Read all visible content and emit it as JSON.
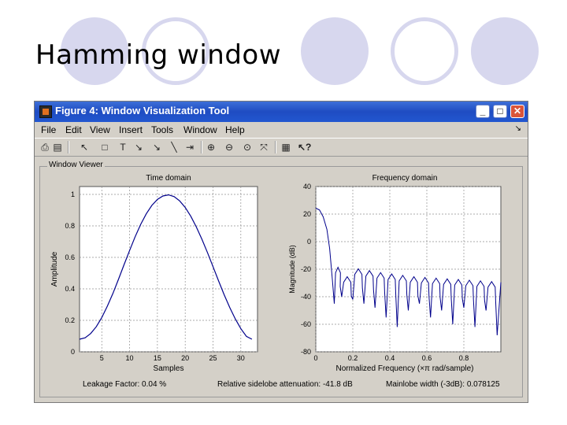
{
  "slide": {
    "title": "Hamming window"
  },
  "window": {
    "title": "Figure 4: Window Visualization Tool",
    "controls": [
      "_",
      "□",
      "✕"
    ]
  },
  "menu": [
    "File",
    "Edit",
    "View",
    "Insert",
    "Tools",
    "Window",
    "Help"
  ],
  "toolbar_icons": [
    "print-icon",
    "print-preview-icon",
    "select-arrow-icon",
    "rectangle-icon",
    "text-icon",
    "arrow-icon",
    "arrow-diag-icon",
    "line-icon",
    "pin-icon",
    "zoom-in-icon",
    "zoom-out-icon",
    "zoom-icon",
    "fit-icon",
    "legend-icon",
    "whats-this-icon"
  ],
  "panel": {
    "label": "Window Viewer"
  },
  "status": {
    "leakage": "Leakage Factor: 0.04 %",
    "sidelobe": "Relative sidelobe attenuation: -41.8 dB",
    "mainlobe": "Mainlobe width (-3dB): 0.078125"
  },
  "colors": {
    "line": "#00008b",
    "axes_bg": "#ffffff",
    "grid": "#909090",
    "panel_bg": "#d4d0c8",
    "deco": "#d7d7ee"
  },
  "chart_data": [
    {
      "type": "line",
      "title": "Time domain",
      "xlabel": "Samples",
      "ylabel": "Amplitude",
      "xlim": [
        1,
        33
      ],
      "ylim": [
        0,
        1.05
      ],
      "xticks": [
        5,
        10,
        15,
        20,
        25,
        30
      ],
      "yticks": [
        0,
        0.2,
        0.4,
        0.6,
        0.8,
        1
      ],
      "ytick_labels": [
        "0",
        "0.2",
        "0.4",
        "0.6",
        "0.8",
        "1"
      ],
      "grid": true,
      "series": [
        {
          "x": [
            1,
            2,
            3,
            4,
            5,
            6,
            7,
            8,
            9,
            10,
            11,
            12,
            13,
            14,
            15,
            16,
            17,
            18,
            19,
            20,
            21,
            22,
            23,
            24,
            25,
            26,
            27,
            28,
            29,
            30,
            31,
            32
          ],
          "y": [
            0.08,
            0.089,
            0.116,
            0.159,
            0.218,
            0.29,
            0.371,
            0.46,
            0.553,
            0.644,
            0.731,
            0.81,
            0.877,
            0.93,
            0.968,
            0.99,
            0.997,
            0.986,
            0.959,
            0.917,
            0.861,
            0.793,
            0.715,
            0.631,
            0.541,
            0.45,
            0.363,
            0.282,
            0.209,
            0.147,
            0.098,
            0.08
          ]
        }
      ]
    },
    {
      "type": "line",
      "title": "Frequency domain",
      "xlabel": "Normalized Frequency (×π rad/sample)",
      "ylabel": "Magnitude (dB)",
      "xlim": [
        0,
        1
      ],
      "ylim": [
        -80,
        40
      ],
      "xticks": [
        0,
        0.2,
        0.4,
        0.6,
        0.8
      ],
      "xtick_labels": [
        "0",
        "0.2",
        "0.4",
        "0.6",
        "0.8"
      ],
      "yticks": [
        -80,
        -60,
        -40,
        -20,
        0,
        20,
        40
      ],
      "ytick_labels": [
        "-80",
        "-60",
        "-40",
        "-20",
        "0",
        "20",
        "40"
      ],
      "grid": true,
      "mainlobe": [
        [
          0,
          24.3
        ],
        [
          0.02,
          23
        ],
        [
          0.04,
          18
        ],
        [
          0.06,
          9
        ],
        [
          0.075,
          -5
        ],
        [
          0.09,
          -28
        ],
        [
          0.1,
          -45
        ]
      ],
      "sidelobe_nulls": [
        0.14,
        0.2,
        0.26,
        0.32,
        0.38,
        0.44,
        0.5,
        0.56,
        0.62,
        0.68,
        0.74,
        0.8,
        0.86,
        0.92,
        0.98
      ],
      "sidelobe_null_depths": [
        -40,
        -42,
        -45,
        -48,
        -55,
        -62,
        -50,
        -45,
        -55,
        -50,
        -60,
        -48,
        -62,
        -50,
        -68
      ],
      "sidelobe_peaks": [
        -18.6,
        -25.5,
        -19.8,
        -21,
        -22.5,
        -23.5,
        -24.5,
        -25.5,
        -26,
        -26.5,
        -27,
        -27.5,
        -28,
        -28.5,
        -29,
        -29.5
      ]
    }
  ]
}
